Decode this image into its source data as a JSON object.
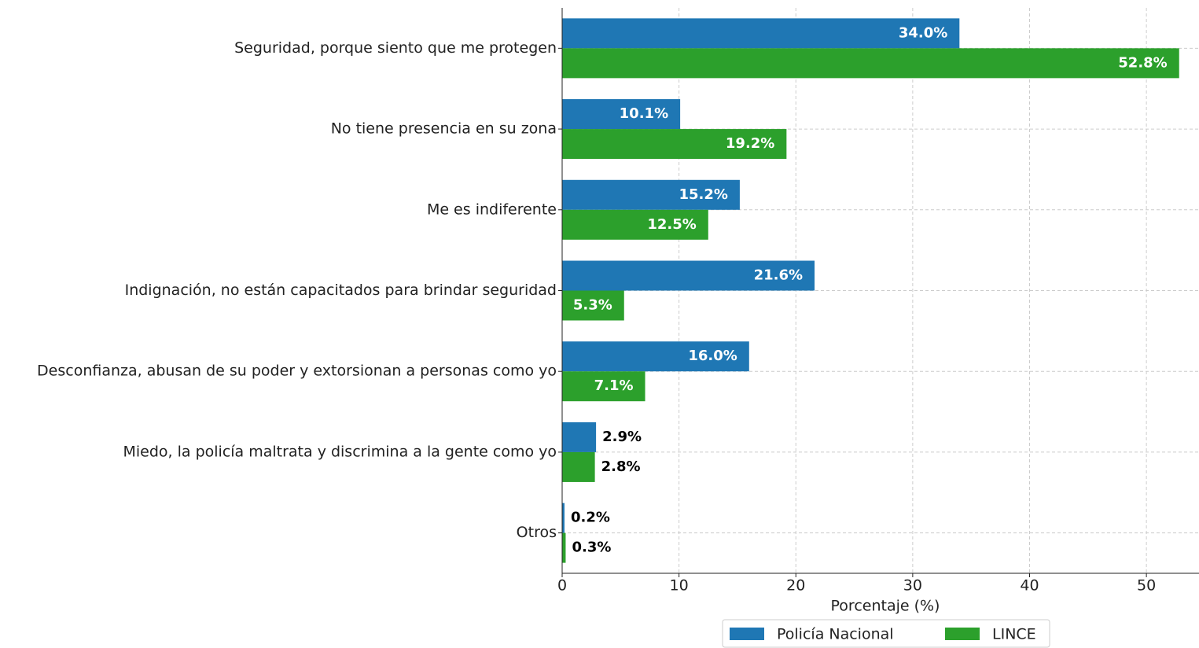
{
  "chart_data": {
    "type": "barh",
    "xlabel": "Porcentaje (%)",
    "categories": [
      "Seguridad, porque siento que me protegen",
      "No tiene presencia en su zona",
      "Me es indiferente",
      "Indignación, no están capacitados para brindar seguridad",
      "Desconfianza, abusan de su poder y extorsionan a personas como yo",
      "Miedo, la policía maltrata y discrimina a la gente como yo",
      "Otros"
    ],
    "series": [
      {
        "name": "Policía Nacional",
        "color": "#1f77b4",
        "values": [
          34.0,
          10.1,
          15.2,
          21.6,
          16.0,
          2.9,
          0.2
        ],
        "value_labels": [
          "34.0%",
          "10.1%",
          "15.2%",
          "21.6%",
          "16.0%",
          "2.9%",
          "0.2%"
        ]
      },
      {
        "name": "LINCE",
        "color": "#2ca02c",
        "values": [
          52.8,
          19.2,
          12.5,
          5.3,
          7.1,
          2.8,
          0.3
        ],
        "value_labels": [
          "52.8%",
          "19.2%",
          "12.5%",
          "5.3%",
          "7.1%",
          "2.8%",
          "0.3%"
        ]
      }
    ],
    "xlim": [
      0,
      54.5
    ],
    "xticks": [
      0,
      10,
      20,
      30,
      40,
      50
    ],
    "grid": true,
    "legend": "bottom"
  }
}
